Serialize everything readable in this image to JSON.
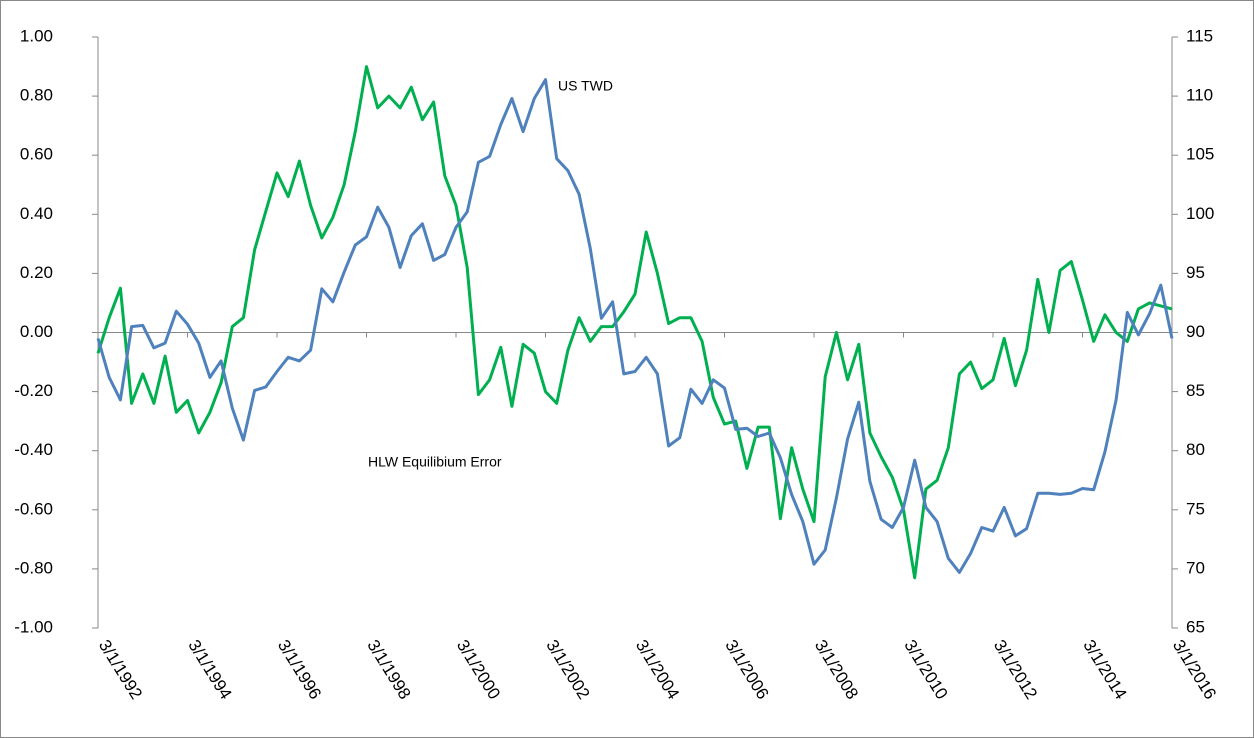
{
  "chart_data": {
    "type": "line",
    "categories": [
      "3/1/1992",
      null,
      null,
      null,
      null,
      null,
      null,
      null,
      "3/1/1994",
      null,
      null,
      null,
      null,
      null,
      null,
      null,
      "3/1/1996",
      null,
      null,
      null,
      null,
      null,
      null,
      null,
      "3/1/1998",
      null,
      null,
      null,
      null,
      null,
      null,
      null,
      "3/1/2000",
      null,
      null,
      null,
      null,
      null,
      null,
      null,
      "3/1/2002",
      null,
      null,
      null,
      null,
      null,
      null,
      null,
      "3/1/2004",
      null,
      null,
      null,
      null,
      null,
      null,
      null,
      "3/1/2006",
      null,
      null,
      null,
      null,
      null,
      null,
      null,
      "3/1/2008",
      null,
      null,
      null,
      null,
      null,
      null,
      null,
      "3/1/2010",
      null,
      null,
      null,
      null,
      null,
      null,
      null,
      "3/1/2012",
      null,
      null,
      null,
      null,
      null,
      null,
      null,
      "3/1/2014",
      null,
      null,
      null,
      null,
      null,
      null,
      null,
      "3/1/2016"
    ],
    "series": [
      {
        "name": "HLW Equilibium Error",
        "color": "#00b050",
        "values": [
          -0.07,
          0.05,
          0.15,
          -0.24,
          -0.14,
          -0.24,
          -0.08,
          -0.27,
          -0.23,
          -0.34,
          -0.27,
          -0.17,
          0.02,
          0.05,
          0.28,
          0.41,
          0.54,
          0.46,
          0.58,
          0.43,
          0.32,
          0.39,
          0.5,
          0.68,
          0.9,
          0.76,
          0.8,
          0.76,
          0.83,
          0.72,
          0.78,
          0.53,
          0.43,
          0.22,
          -0.21,
          -0.16,
          -0.05,
          -0.25,
          -0.04,
          -0.07,
          -0.2,
          -0.24,
          -0.06,
          0.05,
          -0.03,
          0.02,
          0.02,
          0.07,
          0.13,
          0.34,
          0.2,
          0.03,
          0.05,
          0.05,
          -0.03,
          -0.22,
          -0.31,
          -0.3,
          -0.46,
          -0.32,
          -0.32,
          -0.63,
          -0.39,
          -0.53,
          -0.64,
          -0.15,
          0.0,
          -0.16,
          -0.04,
          -0.34,
          -0.42,
          -0.49,
          -0.6,
          -0.83,
          -0.53,
          -0.5,
          -0.39,
          -0.14,
          -0.1,
          -0.19,
          -0.16,
          -0.02,
          -0.18,
          -0.06,
          0.18,
          0.0,
          0.21,
          0.24,
          0.11,
          -0.03,
          0.06,
          0.0,
          -0.03,
          0.08,
          0.1,
          0.09,
          0.08
        ]
      },
      {
        "name": "US TWD",
        "color": "#4f81bd",
        "axis": "y2",
        "values": [
          89.5,
          86.2,
          84.3,
          90.5,
          90.6,
          88.7,
          89.1,
          91.8,
          90.7,
          89.1,
          86.2,
          87.6,
          83.6,
          80.9,
          85.1,
          85.4,
          86.7,
          87.9,
          87.6,
          88.5,
          93.7,
          92.6,
          95.1,
          97.4,
          98.1,
          100.6,
          98.9,
          95.5,
          98.2,
          99.2,
          96.1,
          96.6,
          98.9,
          100.2,
          104.4,
          104.9,
          107.6,
          109.8,
          107.0,
          109.8,
          111.4,
          104.7,
          103.7,
          101.7,
          97.1,
          91.2,
          92.6,
          86.5,
          86.7,
          87.9,
          86.5,
          80.4,
          81.1,
          85.2,
          84.0,
          86.0,
          85.3,
          81.8,
          81.9,
          81.2,
          81.5,
          79.4,
          76.3,
          74.0,
          70.4,
          71.6,
          76.0,
          81.0,
          84.1,
          77.4,
          74.2,
          73.5,
          75.2,
          79.2,
          75.2,
          74.0,
          70.9,
          69.7,
          71.3,
          73.5,
          73.2,
          75.2,
          72.8,
          73.4,
          76.4,
          76.4,
          76.3,
          76.4,
          76.8,
          76.7,
          79.9,
          84.3,
          91.7,
          89.8,
          91.6,
          94.0,
          89.5
        ]
      }
    ],
    "ylim": [
      -1,
      1
    ],
    "yticks": [
      {
        "value": -1,
        "label": "-1.00"
      },
      {
        "value": -0.8,
        "label": "-0.80"
      },
      {
        "value": -0.6,
        "label": "-0.60"
      },
      {
        "value": -0.4,
        "label": "-0.40"
      },
      {
        "value": -0.2,
        "label": "-0.20"
      },
      {
        "value": 0,
        "label": "0.00"
      },
      {
        "value": 0.2,
        "label": "0.20"
      },
      {
        "value": 0.4,
        "label": "0.40"
      },
      {
        "value": 0.6,
        "label": "0.60"
      },
      {
        "value": 0.8,
        "label": "0.80"
      },
      {
        "value": 1,
        "label": "1.00"
      }
    ],
    "y2lim": [
      65,
      115
    ],
    "y2ticks": [
      65,
      70,
      75,
      80,
      85,
      90,
      95,
      100,
      105,
      110,
      115
    ]
  }
}
